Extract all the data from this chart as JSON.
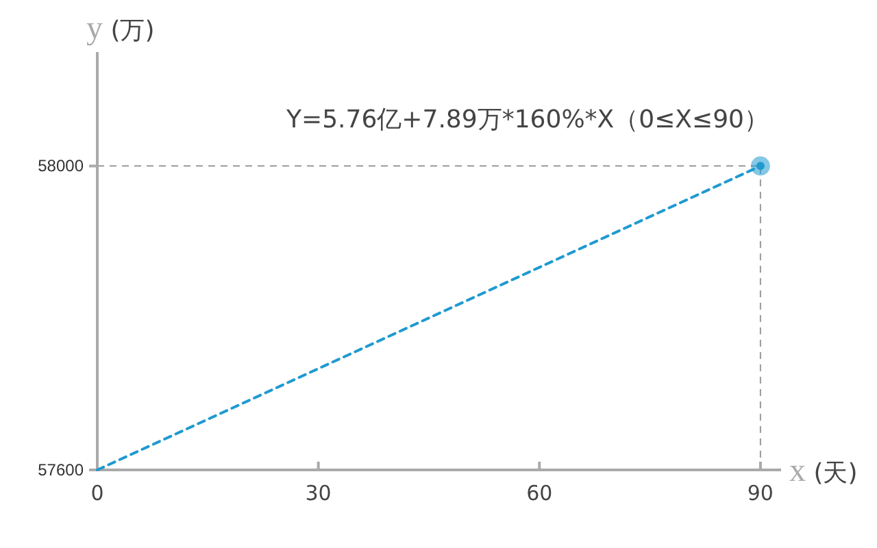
{
  "chart_data": {
    "type": "line",
    "xlabel": "x (天)",
    "ylabel": "y (万)",
    "annotations": [
      "Y=5.76亿+7.89万*160%*X（0≤X≤90）"
    ],
    "x": [
      0,
      90
    ],
    "xlim": [
      0,
      92.8
    ],
    "xticks": [
      0,
      30,
      60,
      90
    ],
    "ylim": [
      57600,
      58150
    ],
    "yticks": [
      57600,
      58000
    ],
    "series": [
      {
        "color": "#1f9ad0",
        "values": [
          57600,
          58000
        ],
        "line_style": "dashed"
      },
      {
        "type": "scatter",
        "x": [
          90
        ],
        "color": "#1f9ad0",
        "values": [
          58000
        ],
        "marker": "circle"
      }
    ],
    "ref_lines": [
      {
        "axis": "x",
        "value": 90,
        "color": "#999999",
        "line_style": "dashed"
      },
      {
        "axis": "y",
        "value": 58000,
        "color": "#999999",
        "line_style": "dashed"
      }
    ],
    "grid": false
  }
}
